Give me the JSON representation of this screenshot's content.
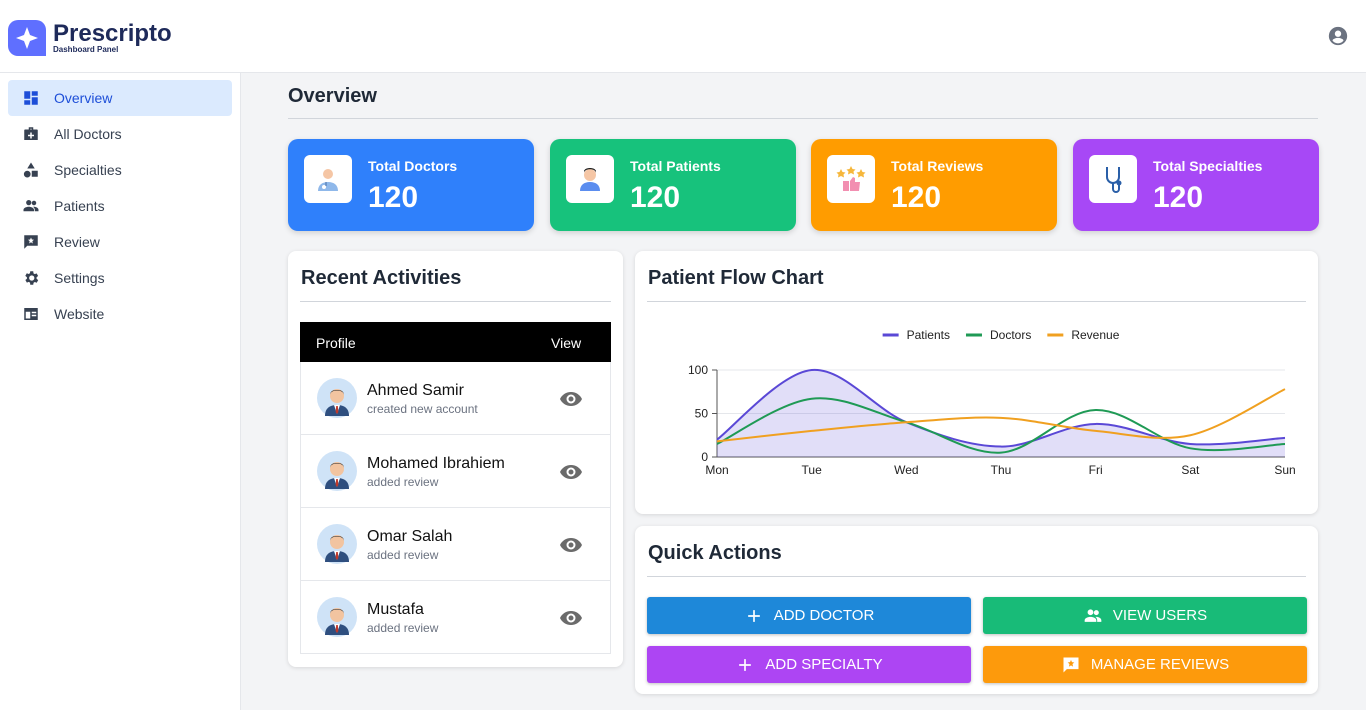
{
  "header": {
    "brand": "Prescripto",
    "tagline": "Dashboard Panel"
  },
  "sidebar": {
    "items": [
      "Overview",
      "All Doctors",
      "Specialties",
      "Patients",
      "Review",
      "Settings",
      "Website"
    ],
    "active_index": 0
  },
  "page_title": "Overview",
  "stats": [
    {
      "label": "Total Doctors",
      "value": 120,
      "color": "#2f80fb"
    },
    {
      "label": "Total Patients",
      "value": 120,
      "color": "#17c27c"
    },
    {
      "label": "Total Reviews",
      "value": 120,
      "color": "#ff9c00"
    },
    {
      "label": "Total Specialties",
      "value": 120,
      "color": "#a748f6"
    }
  ],
  "activities": {
    "title": "Recent Activities",
    "columns": [
      "Profile",
      "View"
    ],
    "rows": [
      {
        "name": "Ahmed Samir",
        "action": "created new account"
      },
      {
        "name": "Mohamed Ibrahiem",
        "action": "added review"
      },
      {
        "name": "Omar Salah",
        "action": "added review"
      },
      {
        "name": "Mustafa",
        "action": "added review"
      }
    ]
  },
  "chart_data": {
    "type": "line",
    "title": "Patient Flow Chart",
    "categories": [
      "Mon",
      "Tue",
      "Wed",
      "Thu",
      "Fri",
      "Sat",
      "Sun"
    ],
    "series": [
      {
        "name": "Patients",
        "color": "#5a48d6",
        "fill": true,
        "values": [
          20,
          100,
          40,
          12,
          38,
          15,
          22
        ]
      },
      {
        "name": "Doctors",
        "color": "#1f9a55",
        "values": [
          15,
          67,
          40,
          5,
          54,
          10,
          15
        ]
      },
      {
        "name": "Revenue",
        "color": "#f0a020",
        "values": [
          18,
          30,
          40,
          45,
          30,
          25,
          78
        ]
      }
    ],
    "ylim": [
      0,
      100
    ],
    "yticks": [
      0,
      50,
      100
    ],
    "grid": true,
    "legend": "top"
  },
  "quick_actions": {
    "title": "Quick Actions",
    "buttons": [
      {
        "label": "ADD DOCTOR",
        "color": "#1e88d9"
      },
      {
        "label": "VIEW USERS",
        "color": "#18bb78"
      },
      {
        "label": "ADD SPECIALTY",
        "color": "#ad45f3"
      },
      {
        "label": "MANAGE REVIEWS",
        "color": "#fd9a0c"
      }
    ]
  }
}
